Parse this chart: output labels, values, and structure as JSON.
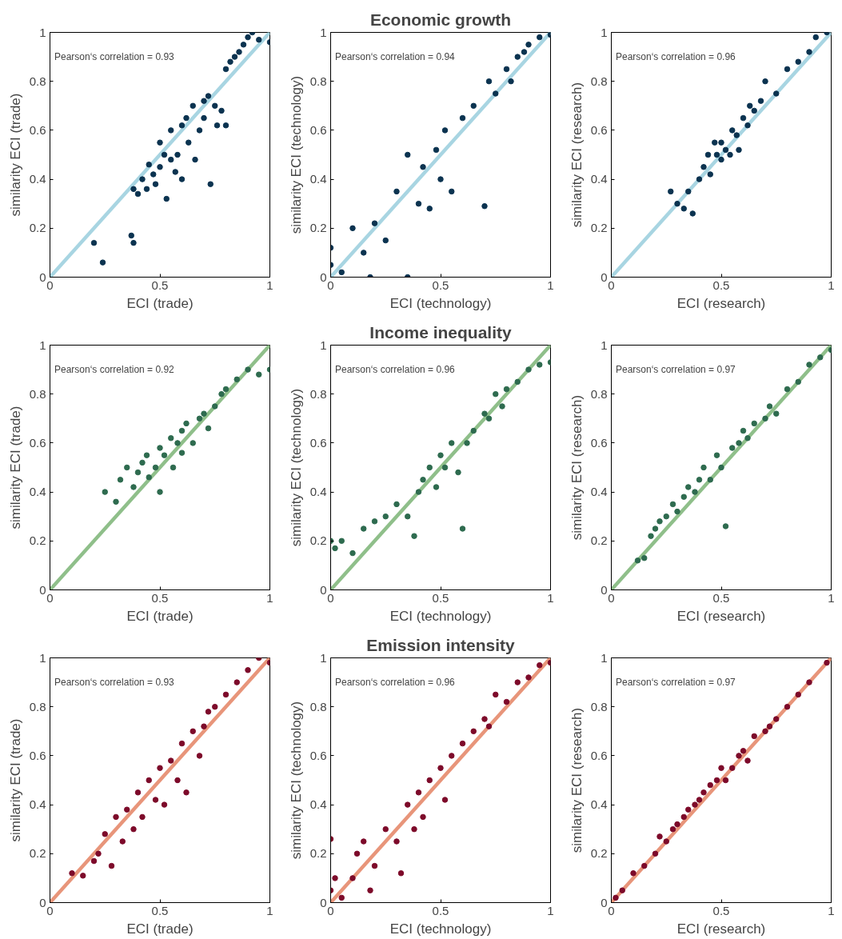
{
  "chart_data": [
    {
      "type": "scatter",
      "xlabel": "ECI (trade)",
      "ylabel": "similarity ECI (trade)",
      "annotations": [
        "Pearson‘s correlation = 0.93"
      ],
      "xlim": [
        0,
        1
      ],
      "ylim": [
        0,
        1
      ],
      "xticks": [
        0,
        0.5,
        1
      ],
      "yticks": [
        0,
        0.2,
        0.4,
        0.6,
        0.8,
        1
      ],
      "series": [
        {
          "marker": "circle",
          "color": "#0b3350",
          "x": [
            0.2,
            0.24,
            0.37,
            0.38,
            0.38,
            0.4,
            0.42,
            0.44,
            0.45,
            0.47,
            0.48,
            0.5,
            0.5,
            0.52,
            0.53,
            0.55,
            0.55,
            0.57,
            0.58,
            0.6,
            0.6,
            0.62,
            0.63,
            0.65,
            0.66,
            0.68,
            0.7,
            0.7,
            0.72,
            0.73,
            0.75,
            0.76,
            0.78,
            0.8,
            0.8,
            0.82,
            0.84,
            0.86,
            0.88,
            0.9,
            0.92,
            0.95,
            1.0
          ],
          "values": [
            0.14,
            0.06,
            0.17,
            0.14,
            0.36,
            0.34,
            0.4,
            0.36,
            0.46,
            0.42,
            0.38,
            0.55,
            0.45,
            0.5,
            0.32,
            0.48,
            0.6,
            0.43,
            0.5,
            0.62,
            0.4,
            0.65,
            0.55,
            0.7,
            0.48,
            0.6,
            0.72,
            0.65,
            0.74,
            0.38,
            0.7,
            0.62,
            0.68,
            0.62,
            0.85,
            0.88,
            0.9,
            0.92,
            0.95,
            0.98,
            1.0,
            0.97,
            0.96
          ]
        },
        {
          "type": "line",
          "marker": "none",
          "color": "#a8d5e2",
          "line_style": "solid",
          "x": [
            0,
            1
          ],
          "values": [
            0,
            1
          ]
        }
      ]
    },
    {
      "type": "scatter",
      "title": "Economic growth",
      "xlabel": "ECI (technology)",
      "ylabel": "similarity ECI (technology)",
      "annotations": [
        "Pearson‘s correlation = 0.94"
      ],
      "xlim": [
        0,
        1
      ],
      "ylim": [
        0,
        1
      ],
      "xticks": [
        0,
        0.5,
        1
      ],
      "yticks": [
        0,
        0.2,
        0.4,
        0.6,
        0.8,
        1
      ],
      "series": [
        {
          "marker": "circle",
          "color": "#0b3350",
          "x": [
            0,
            0,
            0.05,
            0.1,
            0.15,
            0.18,
            0.2,
            0.25,
            0.3,
            0.35,
            0.35,
            0.4,
            0.42,
            0.45,
            0.48,
            0.5,
            0.52,
            0.55,
            0.6,
            0.65,
            0.7,
            0.72,
            0.75,
            0.8,
            0.82,
            0.85,
            0.88,
            0.9,
            0.95,
            1.0
          ],
          "values": [
            0.05,
            0.12,
            0.02,
            0.2,
            0.1,
            0,
            0.22,
            0.15,
            0.35,
            0,
            0.5,
            0.3,
            0.45,
            0.28,
            0.52,
            0.4,
            0.6,
            0.35,
            0.65,
            0.7,
            0.29,
            0.8,
            0.75,
            0.85,
            0.8,
            0.9,
            0.92,
            0.95,
            0.98,
            0.99
          ]
        },
        {
          "type": "line",
          "marker": "none",
          "color": "#a8d5e2",
          "line_style": "solid",
          "x": [
            0,
            1
          ],
          "values": [
            0,
            1
          ]
        }
      ]
    },
    {
      "type": "scatter",
      "xlabel": "ECI (research)",
      "ylabel": "similarity ECI (research)",
      "annotations": [
        "Pearson‘s correlation = 0.96"
      ],
      "xlim": [
        0,
        1
      ],
      "ylim": [
        0,
        1
      ],
      "xticks": [
        0,
        0.5,
        1
      ],
      "yticks": [
        0,
        0.2,
        0.4,
        0.6,
        0.8,
        1
      ],
      "series": [
        {
          "marker": "circle",
          "color": "#0b3350",
          "x": [
            0.27,
            0.3,
            0.33,
            0.35,
            0.37,
            0.4,
            0.42,
            0.44,
            0.45,
            0.47,
            0.48,
            0.5,
            0.5,
            0.52,
            0.54,
            0.55,
            0.57,
            0.58,
            0.6,
            0.62,
            0.63,
            0.65,
            0.68,
            0.7,
            0.75,
            0.8,
            0.85,
            0.9,
            0.93,
            0.98
          ],
          "values": [
            0.35,
            0.3,
            0.28,
            0.35,
            0.26,
            0.4,
            0.45,
            0.5,
            0.42,
            0.55,
            0.5,
            0.48,
            0.55,
            0.52,
            0.5,
            0.6,
            0.58,
            0.52,
            0.65,
            0.62,
            0.7,
            0.68,
            0.72,
            0.8,
            0.75,
            0.85,
            0.88,
            0.92,
            0.98,
            1.0
          ]
        },
        {
          "type": "line",
          "marker": "none",
          "color": "#a8d5e2",
          "line_style": "solid",
          "x": [
            0,
            1
          ],
          "values": [
            0,
            1
          ]
        }
      ]
    },
    {
      "type": "scatter",
      "xlabel": "ECI (trade)",
      "ylabel": "similarity ECI (trade)",
      "annotations": [
        "Pearson‘s correlation = 0.92"
      ],
      "xlim": [
        0,
        1
      ],
      "ylim": [
        0,
        1
      ],
      "xticks": [
        0,
        0.5,
        1
      ],
      "yticks": [
        0,
        0.2,
        0.4,
        0.6,
        0.8,
        1
      ],
      "series": [
        {
          "marker": "circle",
          "color": "#2e6b4f",
          "x": [
            0.25,
            0.3,
            0.32,
            0.35,
            0.38,
            0.4,
            0.42,
            0.44,
            0.45,
            0.48,
            0.5,
            0.5,
            0.52,
            0.55,
            0.56,
            0.58,
            0.6,
            0.6,
            0.62,
            0.65,
            0.68,
            0.7,
            0.72,
            0.75,
            0.78,
            0.8,
            0.85,
            0.9,
            0.95,
            1.0
          ],
          "values": [
            0.4,
            0.36,
            0.45,
            0.5,
            0.42,
            0.48,
            0.52,
            0.55,
            0.46,
            0.5,
            0.58,
            0.4,
            0.55,
            0.62,
            0.5,
            0.6,
            0.65,
            0.56,
            0.68,
            0.6,
            0.7,
            0.72,
            0.66,
            0.75,
            0.8,
            0.82,
            0.86,
            0.9,
            0.88,
            0.9
          ]
        },
        {
          "type": "line",
          "marker": "none",
          "color": "#8fbf8a",
          "line_style": "solid",
          "x": [
            0,
            1
          ],
          "values": [
            0,
            1
          ]
        }
      ]
    },
    {
      "type": "scatter",
      "title": "Income inequality",
      "xlabel": "ECI (technology)",
      "ylabel": "similarity ECI (technology)",
      "annotations": [
        "Pearson‘s correlation = 0.96"
      ],
      "xlim": [
        0,
        1
      ],
      "ylim": [
        0,
        1
      ],
      "xticks": [
        0,
        0.5,
        1
      ],
      "yticks": [
        0,
        0.2,
        0.4,
        0.6,
        0.8,
        1
      ],
      "series": [
        {
          "marker": "circle",
          "color": "#2e6b4f",
          "x": [
            0,
            0.02,
            0.05,
            0.1,
            0.15,
            0.2,
            0.25,
            0.3,
            0.35,
            0.38,
            0.4,
            0.42,
            0.45,
            0.48,
            0.5,
            0.52,
            0.55,
            0.58,
            0.6,
            0.62,
            0.65,
            0.7,
            0.72,
            0.75,
            0.78,
            0.8,
            0.85,
            0.9,
            0.95,
            1.0
          ],
          "values": [
            0.2,
            0.17,
            0.2,
            0.15,
            0.25,
            0.28,
            0.3,
            0.35,
            0.3,
            0.22,
            0.4,
            0.45,
            0.5,
            0.42,
            0.55,
            0.5,
            0.6,
            0.48,
            0.25,
            0.6,
            0.65,
            0.72,
            0.7,
            0.8,
            0.75,
            0.82,
            0.85,
            0.9,
            0.92,
            0.93
          ]
        },
        {
          "type": "line",
          "marker": "none",
          "color": "#8fbf8a",
          "line_style": "solid",
          "x": [
            0,
            1
          ],
          "values": [
            0,
            1
          ]
        }
      ]
    },
    {
      "type": "scatter",
      "xlabel": "ECI (research)",
      "ylabel": "similarity ECI (research)",
      "annotations": [
        "Pearson‘s correlation = 0.97"
      ],
      "xlim": [
        0,
        1
      ],
      "ylim": [
        0,
        1
      ],
      "xticks": [
        0,
        0.5,
        1
      ],
      "yticks": [
        0,
        0.2,
        0.4,
        0.6,
        0.8,
        1
      ],
      "series": [
        {
          "marker": "circle",
          "color": "#2e6b4f",
          "x": [
            0.12,
            0.15,
            0.18,
            0.2,
            0.22,
            0.25,
            0.28,
            0.3,
            0.33,
            0.35,
            0.38,
            0.4,
            0.42,
            0.45,
            0.48,
            0.5,
            0.52,
            0.55,
            0.58,
            0.6,
            0.62,
            0.65,
            0.7,
            0.72,
            0.75,
            0.8,
            0.85,
            0.9,
            0.95,
            1.0
          ],
          "values": [
            0.12,
            0.13,
            0.22,
            0.25,
            0.28,
            0.3,
            0.35,
            0.32,
            0.38,
            0.42,
            0.4,
            0.45,
            0.5,
            0.45,
            0.55,
            0.5,
            0.26,
            0.58,
            0.6,
            0.65,
            0.62,
            0.68,
            0.7,
            0.75,
            0.72,
            0.82,
            0.85,
            0.92,
            0.95,
            0.98
          ]
        },
        {
          "type": "line",
          "marker": "none",
          "color": "#8fbf8a",
          "line_style": "solid",
          "x": [
            0,
            1
          ],
          "values": [
            0,
            1
          ]
        }
      ]
    },
    {
      "type": "scatter",
      "xlabel": "ECI (trade)",
      "ylabel": "similarity ECI (trade)",
      "annotations": [
        "Pearson‘s correlation = 0.93"
      ],
      "xlim": [
        0,
        1
      ],
      "ylim": [
        0,
        1
      ],
      "xticks": [
        0,
        0.5,
        1
      ],
      "yticks": [
        0,
        0.2,
        0.4,
        0.6,
        0.8,
        1
      ],
      "series": [
        {
          "marker": "circle",
          "color": "#7d0a2a",
          "x": [
            0.1,
            0.15,
            0.2,
            0.22,
            0.25,
            0.28,
            0.3,
            0.33,
            0.35,
            0.38,
            0.4,
            0.42,
            0.45,
            0.48,
            0.5,
            0.52,
            0.55,
            0.58,
            0.6,
            0.62,
            0.65,
            0.68,
            0.7,
            0.72,
            0.75,
            0.8,
            0.85,
            0.9,
            0.95,
            1.0
          ],
          "values": [
            0.12,
            0.11,
            0.17,
            0.2,
            0.28,
            0.15,
            0.35,
            0.25,
            0.38,
            0.3,
            0.45,
            0.35,
            0.5,
            0.42,
            0.55,
            0.4,
            0.58,
            0.5,
            0.65,
            0.45,
            0.7,
            0.6,
            0.72,
            0.78,
            0.8,
            0.85,
            0.9,
            0.95,
            1.0,
            0.98
          ]
        },
        {
          "type": "line",
          "marker": "none",
          "color": "#e8957a",
          "line_style": "solid",
          "x": [
            0,
            1
          ],
          "values": [
            0,
            1
          ]
        }
      ]
    },
    {
      "type": "scatter",
      "title": "Emission intensity",
      "xlabel": "ECI (technology)",
      "ylabel": "similarity ECI (technology)",
      "annotations": [
        "Pearson‘s correlation = 0.96"
      ],
      "xlim": [
        0,
        1
      ],
      "ylim": [
        0,
        1
      ],
      "xticks": [
        0,
        0.5,
        1
      ],
      "yticks": [
        0,
        0.2,
        0.4,
        0.6,
        0.8,
        1
      ],
      "series": [
        {
          "marker": "circle",
          "color": "#7d0a2a",
          "x": [
            0,
            0,
            0.02,
            0.05,
            0.1,
            0.12,
            0.15,
            0.18,
            0.2,
            0.25,
            0.3,
            0.32,
            0.35,
            0.38,
            0.4,
            0.42,
            0.45,
            0.5,
            0.52,
            0.55,
            0.6,
            0.65,
            0.7,
            0.72,
            0.75,
            0.8,
            0.85,
            0.9,
            0.95,
            1.0
          ],
          "values": [
            0.05,
            0.26,
            0.1,
            0.02,
            0.1,
            0.2,
            0.25,
            0.05,
            0.15,
            0.3,
            0.25,
            0.12,
            0.4,
            0.3,
            0.45,
            0.35,
            0.5,
            0.55,
            0.42,
            0.6,
            0.65,
            0.7,
            0.75,
            0.72,
            0.85,
            0.82,
            0.9,
            0.92,
            0.97,
            0.98
          ]
        },
        {
          "type": "line",
          "marker": "none",
          "color": "#e8957a",
          "line_style": "solid",
          "x": [
            0,
            1
          ],
          "values": [
            0,
            1
          ]
        }
      ]
    },
    {
      "type": "scatter",
      "xlabel": "ECI (research)",
      "ylabel": "similarity ECI (research)",
      "annotations": [
        "Pearson‘s correlation = 0.97"
      ],
      "xlim": [
        0,
        1
      ],
      "ylim": [
        0,
        1
      ],
      "xticks": [
        0,
        0.5,
        1
      ],
      "yticks": [
        0,
        0.2,
        0.4,
        0.6,
        0.8,
        1
      ],
      "series": [
        {
          "marker": "circle",
          "color": "#7d0a2a",
          "x": [
            0.02,
            0.05,
            0.1,
            0.15,
            0.2,
            0.22,
            0.25,
            0.28,
            0.3,
            0.33,
            0.35,
            0.38,
            0.4,
            0.42,
            0.45,
            0.48,
            0.5,
            0.52,
            0.55,
            0.58,
            0.6,
            0.62,
            0.65,
            0.7,
            0.72,
            0.75,
            0.8,
            0.85,
            0.9,
            0.98
          ],
          "values": [
            0.02,
            0.05,
            0.12,
            0.15,
            0.2,
            0.27,
            0.25,
            0.3,
            0.32,
            0.35,
            0.38,
            0.4,
            0.42,
            0.45,
            0.48,
            0.5,
            0.55,
            0.5,
            0.55,
            0.6,
            0.62,
            0.58,
            0.68,
            0.7,
            0.72,
            0.75,
            0.8,
            0.85,
            0.9,
            0.98
          ]
        },
        {
          "type": "line",
          "marker": "none",
          "color": "#e8957a",
          "line_style": "solid",
          "x": [
            0,
            1
          ],
          "values": [
            0,
            1
          ]
        }
      ]
    }
  ]
}
